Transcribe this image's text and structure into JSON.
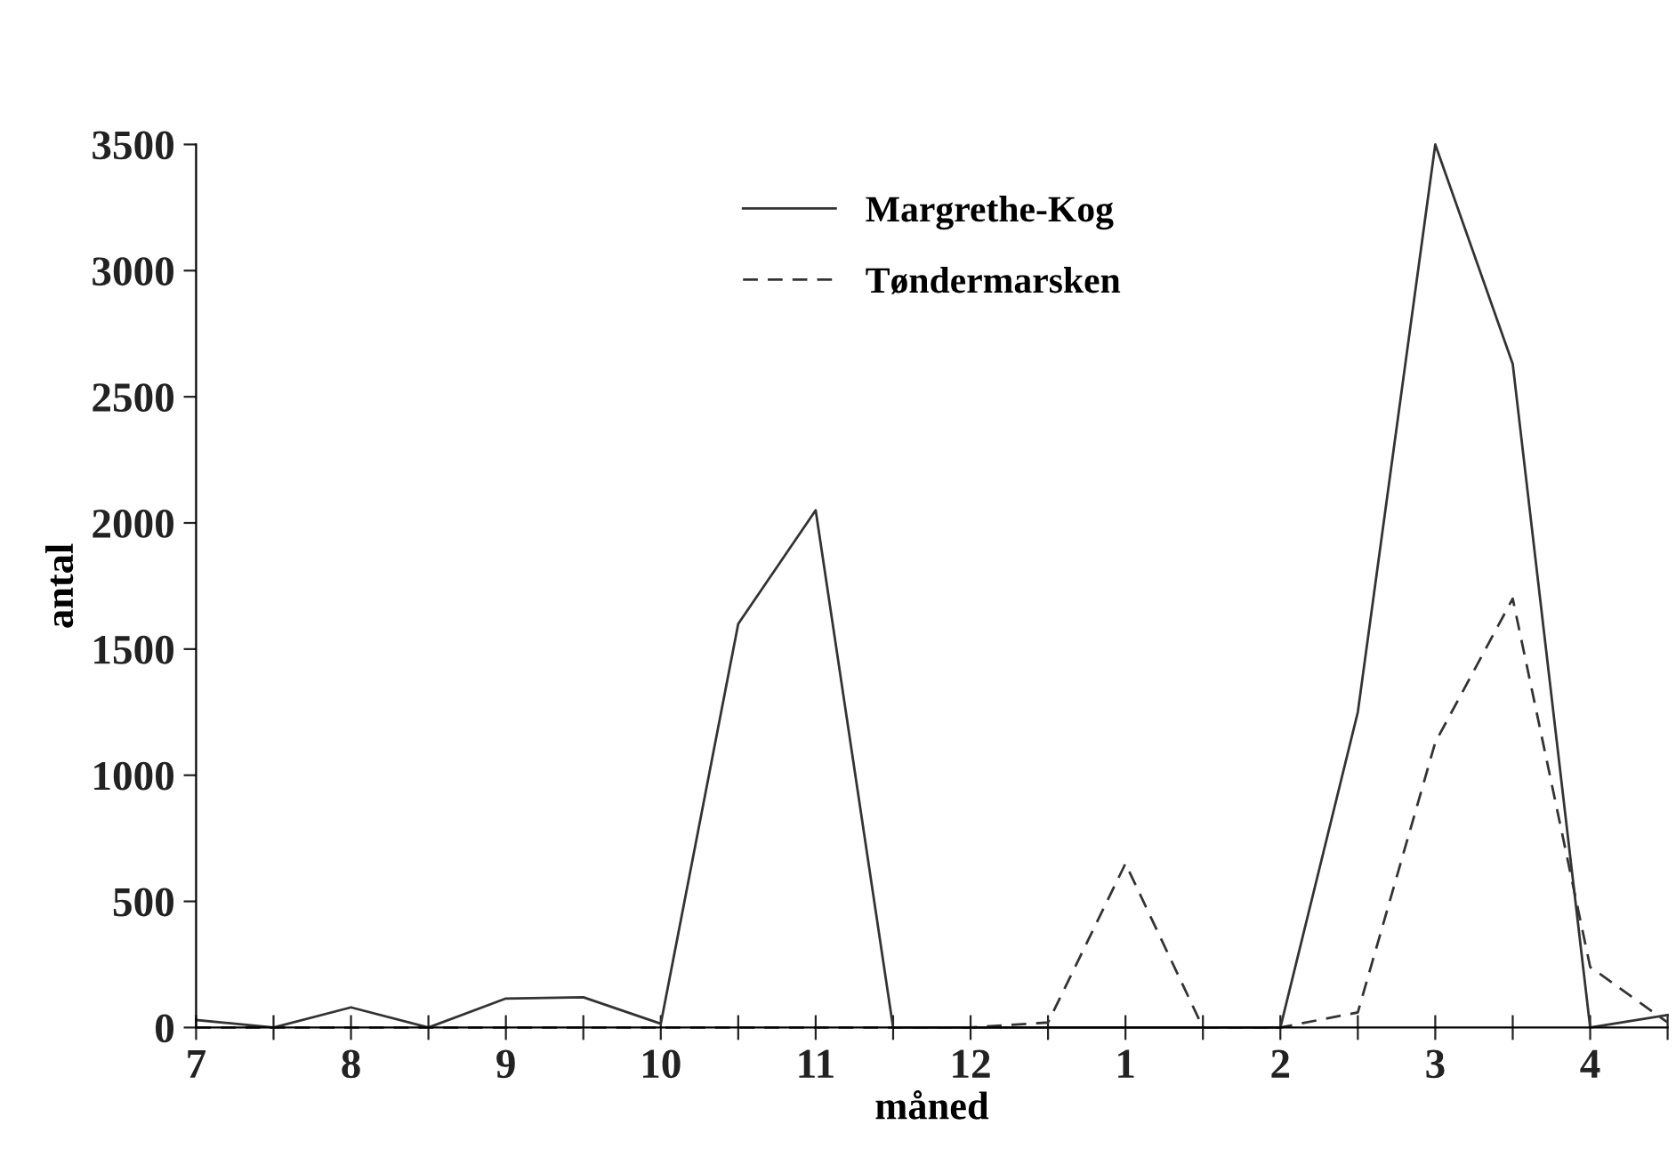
{
  "chart_data": {
    "type": "line",
    "xlabel": "måned",
    "ylabel": "antal",
    "categories": [
      "7",
      null,
      "8",
      null,
      "9",
      null,
      "10",
      null,
      "11",
      null,
      "12",
      null,
      "1",
      null,
      "2",
      null,
      "3",
      null,
      "4",
      null
    ],
    "series": [
      {
        "name": "Margrethe-Kog",
        "color": "#333333",
        "line_style": "solid",
        "values": [
          30,
          0,
          80,
          0,
          115,
          120,
          15,
          1600,
          2050,
          0,
          0,
          0,
          0,
          0,
          0,
          1250,
          3500,
          2630,
          0,
          50
        ]
      },
      {
        "name": "Tøndermarsken",
        "color": "#333333",
        "line_style": "dashed",
        "values": [
          0,
          0,
          0,
          0,
          0,
          0,
          0,
          0,
          0,
          0,
          0,
          20,
          650,
          0,
          0,
          60,
          1130,
          1700,
          240,
          20
        ]
      }
    ],
    "ylim": [
      0,
      3500
    ],
    "yticks": [
      0,
      500,
      1000,
      1500,
      2000,
      2500,
      3000,
      3500
    ],
    "grid": false,
    "legend": "top",
    "marker": "none"
  }
}
